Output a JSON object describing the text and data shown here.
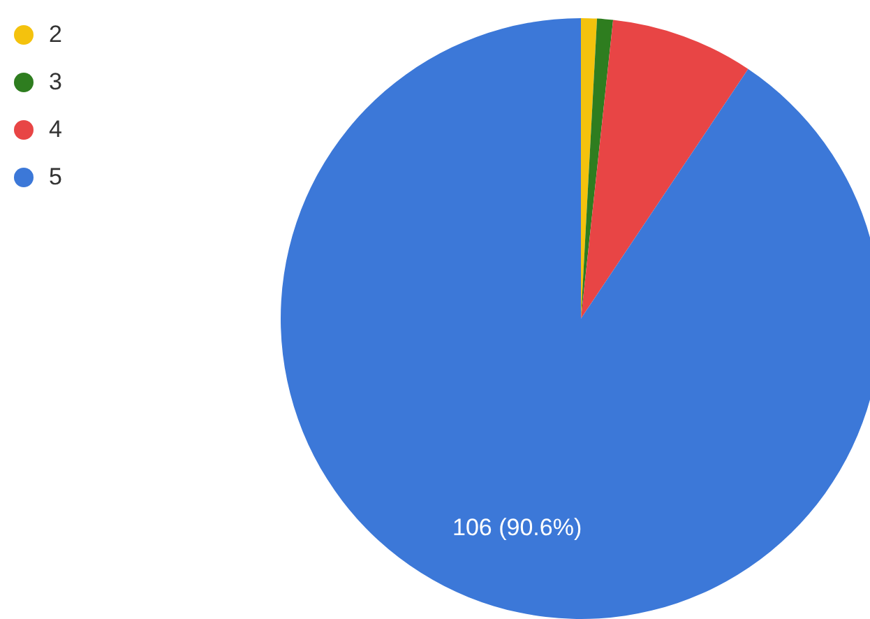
{
  "chart_data": {
    "type": "pie",
    "categories": [
      "2",
      "3",
      "4",
      "5"
    ],
    "values": [
      1,
      1,
      9,
      106
    ],
    "colors": [
      "#f4c20d",
      "#2e7d1f",
      "#e84545",
      "#3c78d8"
    ],
    "value_labels": [
      null,
      null,
      null,
      "106 (90.6%)"
    ],
    "legend": "top left"
  }
}
